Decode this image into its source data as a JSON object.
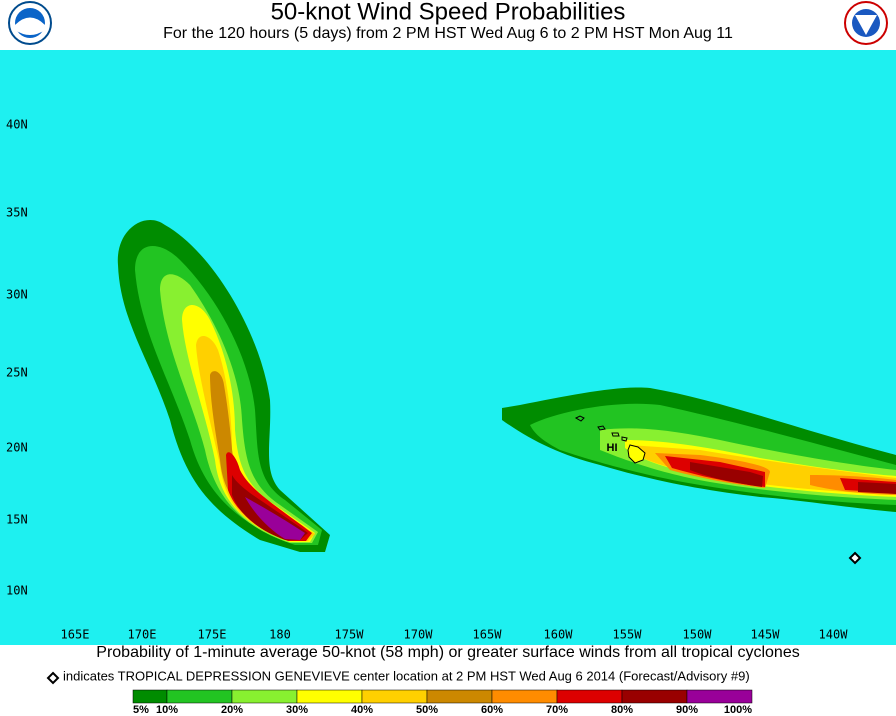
{
  "header": {
    "title": "50-knot Wind Speed Probabilities",
    "subtitle": "For the 120 hours (5 days) from 2 PM HST Wed Aug 6 to 2 PM HST Mon Aug 11"
  },
  "map": {
    "lat_labels": [
      "40N",
      "35N",
      "30N",
      "25N",
      "20N",
      "15N",
      "10N"
    ],
    "lon_labels": [
      "165E",
      "170E",
      "175E",
      "180",
      "175W",
      "170W",
      "165W",
      "160W",
      "155W",
      "150W",
      "145W",
      "140W"
    ],
    "region_label": "HI"
  },
  "footer": {
    "caption": "Probability of 1-minute average 50-knot (58 mph) or greater surface winds from all tropical cyclones",
    "note": "indicates TROPICAL DEPRESSION GENEVIEVE center location at 2 PM HST Wed Aug 6 2014 (Forecast/Advisory #9)"
  },
  "legend": {
    "colors": [
      "#008c00",
      "#22c422",
      "#88f030",
      "#ffff00",
      "#ffd000",
      "#cc8800",
      "#ff8c00",
      "#dd0000",
      "#990000",
      "#990099"
    ],
    "labels": [
      "5%",
      "10%",
      "20%",
      "30%",
      "40%",
      "50%",
      "60%",
      "70%",
      "80%",
      "90%",
      "100%"
    ]
  }
}
